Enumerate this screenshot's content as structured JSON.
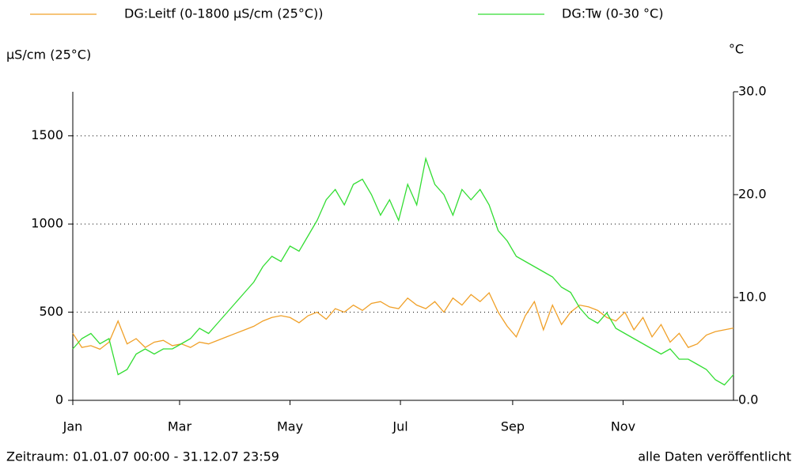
{
  "chart_data": {
    "type": "line",
    "series": [
      {
        "name": "DG:Leitf (0-1800 µS/cm (25°C))",
        "color": "#f0a028",
        "values": [
          380,
          300,
          310,
          290,
          330,
          450,
          320,
          350,
          300,
          330,
          340,
          310,
          320,
          300,
          330,
          320,
          340,
          360,
          380,
          400,
          420,
          450,
          470,
          480,
          470,
          440,
          480,
          500,
          460,
          520,
          500,
          540,
          510,
          550,
          560,
          530,
          520,
          580,
          540,
          520,
          560,
          500,
          580,
          540,
          600,
          560,
          610,
          500,
          420,
          360,
          480,
          560,
          400,
          540,
          430,
          500,
          540,
          530,
          510,
          470,
          450,
          500,
          400,
          470,
          360,
          430,
          330,
          380,
          300,
          320,
          370,
          390,
          400,
          410
        ]
      },
      {
        "name": "DG:Tw (0-30 °C)",
        "color": "#33dd33",
        "axis": "y2",
        "values": [
          5,
          6,
          6.5,
          5.5,
          6,
          2.5,
          3,
          4.5,
          5,
          4.5,
          5,
          5,
          5.5,
          6,
          7,
          6.5,
          7.5,
          8.5,
          9.5,
          10.5,
          11.5,
          13,
          14,
          13.5,
          15,
          14.5,
          16,
          17.5,
          19.5,
          20.5,
          19,
          21,
          21.5,
          20,
          18,
          19.5,
          17.5,
          21,
          19,
          23.5,
          21,
          20,
          18,
          20.5,
          19.5,
          20.5,
          19,
          16.5,
          15.5,
          14,
          13.5,
          13,
          12.5,
          12,
          11,
          10.5,
          9,
          8,
          7.5,
          8.5,
          7,
          6.5,
          6,
          5.5,
          5,
          4.5,
          5,
          4,
          4,
          3.5,
          3,
          2,
          1.5,
          2.5
        ]
      }
    ],
    "x": [
      0,
      5,
      10,
      15,
      20,
      25,
      30,
      35,
      40,
      45,
      50,
      55,
      60,
      65,
      70,
      75,
      80,
      85,
      90,
      95,
      100,
      105,
      110,
      115,
      120,
      125,
      130,
      135,
      140,
      145,
      150,
      155,
      160,
      165,
      170,
      175,
      180,
      185,
      190,
      195,
      200,
      205,
      210,
      215,
      220,
      225,
      230,
      235,
      240,
      245,
      250,
      255,
      260,
      265,
      270,
      275,
      280,
      285,
      290,
      295,
      300,
      305,
      310,
      315,
      320,
      325,
      330,
      335,
      340,
      345,
      350,
      355,
      360,
      365
    ],
    "xlim": [
      0,
      365
    ],
    "xticks": [
      {
        "value": 0,
        "label": "Jan"
      },
      {
        "value": 59,
        "label": "Mar"
      },
      {
        "value": 120,
        "label": "May"
      },
      {
        "value": 181,
        "label": "Jul"
      },
      {
        "value": 243,
        "label": "Sep"
      },
      {
        "value": 304,
        "label": "Nov"
      }
    ],
    "ylim": [
      0,
      1750
    ],
    "yticks": [
      0,
      500,
      1000,
      1500
    ],
    "y2lim": [
      0,
      30
    ],
    "y2ticks": [
      {
        "value": 0,
        "label": "0.0"
      },
      {
        "value": 10,
        "label": "10.0"
      },
      {
        "value": 20,
        "label": "20.0"
      },
      {
        "value": 30,
        "label": "30.0"
      }
    ],
    "ylabel": "µS/cm (25°C)",
    "y2label": "°C",
    "grid": true,
    "footer_left": "Zeitraum: 01.01.07 00:00 - 31.12.07 23:59",
    "footer_right": "alle Daten veröffentlicht"
  }
}
